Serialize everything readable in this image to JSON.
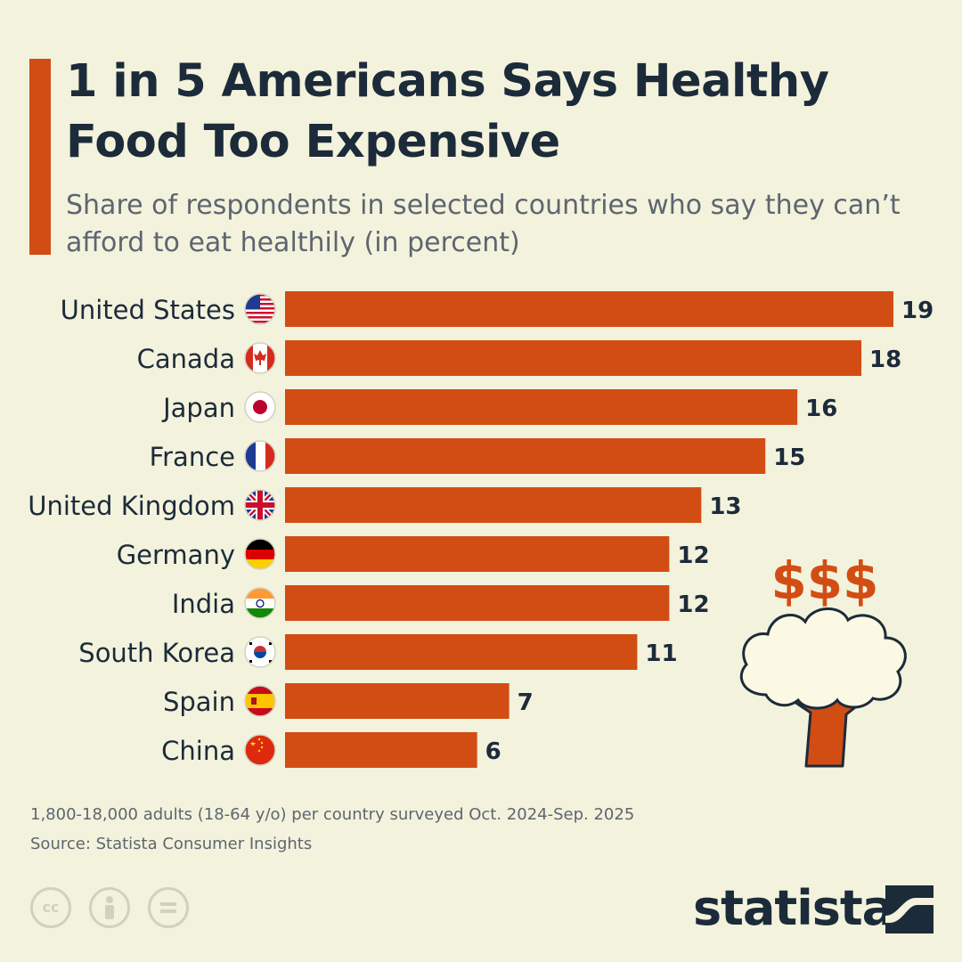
{
  "header": {
    "title": "1 in 5 Americans Says Healthy Food Too Expensive",
    "subtitle": "Share of respondents in selected countries who say they can’t afford to eat healthily (in percent)"
  },
  "chart_data": {
    "type": "bar",
    "orientation": "horizontal",
    "title": "1 in 5 Americans Says Healthy Food Too Expensive",
    "subtitle": "Share of respondents in selected countries who say they can’t afford to eat healthily (in percent)",
    "categories": [
      "United States",
      "Canada",
      "Japan",
      "France",
      "United Kingdom",
      "Germany",
      "India",
      "South Korea",
      "Spain",
      "China"
    ],
    "values": [
      19,
      18,
      16,
      15,
      13,
      12,
      12,
      11,
      7,
      6
    ],
    "flags": [
      "us-flag-icon",
      "canada-flag-icon",
      "japan-flag-icon",
      "france-flag-icon",
      "uk-flag-icon",
      "germany-flag-icon",
      "india-flag-icon",
      "south-korea-flag-icon",
      "spain-flag-icon",
      "china-flag-icon"
    ],
    "xlim": [
      0,
      19
    ],
    "grid": false,
    "data_labels": true,
    "bar_color": "#d24d13"
  },
  "illustration": {
    "symbol": "$$$",
    "icon": "broccoli-icon"
  },
  "footer": {
    "note": "1,800-18,000 adults (18-64 y/o) per country surveyed Oct. 2024-Sep. 2025",
    "source": "Source: Statista Consumer Insights",
    "license_icons": [
      "creative-commons-icon",
      "attribution-icon",
      "no-derivatives-icon"
    ],
    "brand": "statista",
    "license_cc_text": "cc"
  },
  "colors": {
    "background": "#f3f2dc",
    "accent": "#d24d13",
    "title_text": "#1c2b3a",
    "muted_text": "#5d6670"
  }
}
